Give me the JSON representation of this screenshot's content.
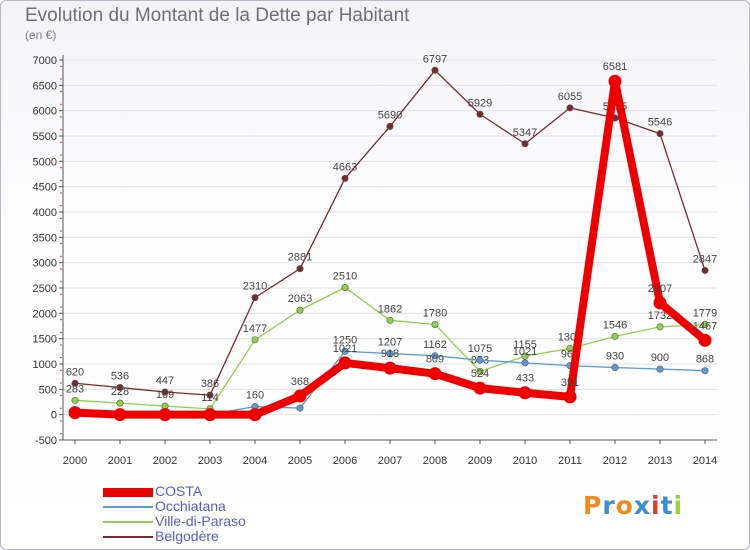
{
  "title": "Evolution du Montant de la Dette par Habitant",
  "unit_label": "(en €)",
  "logo_text": "Proxiti",
  "colors": {
    "text": "#6f6f7a",
    "grid": "#e2e2e8",
    "axis": "#555555",
    "legend_text": "#5a5ad8",
    "logo": [
      "#f08a1c",
      "#3a8fd0",
      "#f08a1c",
      "#3a8fd0",
      "#e23a2a",
      "#3a8fd0",
      "#9bcf3a"
    ]
  },
  "chart_data": {
    "type": "line",
    "title": "Evolution du Montant de la Dette par Habitant",
    "ylabel": "(en €)",
    "xlabel": "",
    "x": [
      2000,
      2001,
      2002,
      2003,
      2004,
      2005,
      2006,
      2007,
      2008,
      2009,
      2010,
      2011,
      2012,
      2013,
      2014
    ],
    "ylim": [
      -500,
      7000
    ],
    "yticks": [
      -500,
      0,
      500,
      1000,
      1500,
      2000,
      2500,
      3000,
      3500,
      4000,
      4500,
      5000,
      5500,
      6000,
      6500,
      7000
    ],
    "grid": true,
    "legend_position": "bottom-left",
    "series": [
      {
        "name": "COSTA",
        "color": "#ee0000",
        "points": [
          [
            2000,
            40
          ],
          [
            2001,
            0
          ],
          [
            2002,
            0
          ],
          [
            2003,
            0
          ],
          [
            2004,
            0
          ],
          [
            2005,
            368
          ],
          [
            2006,
            1021
          ],
          [
            2007,
            918
          ],
          [
            2008,
            809
          ],
          [
            2009,
            524
          ],
          [
            2010,
            433
          ],
          [
            2011,
            351
          ],
          [
            2012,
            6581
          ],
          [
            2013,
            2207
          ],
          [
            2014,
            1467
          ]
        ],
        "labels": [
          "",
          "",
          "",
          "",
          "",
          "368",
          "1021",
          "918",
          "809",
          "524",
          "433",
          "351",
          "6581",
          "2207",
          "1467"
        ]
      },
      {
        "name": "Occhiatana",
        "color": "#5b9bd5",
        "points": [
          [
            2000,
            0
          ],
          [
            2001,
            0
          ],
          [
            2002,
            0
          ],
          [
            2003,
            4
          ],
          [
            2004,
            160
          ],
          [
            2005,
            130
          ],
          [
            2006,
            1250
          ],
          [
            2007,
            1207
          ],
          [
            2008,
            1162
          ],
          [
            2009,
            1075
          ],
          [
            2010,
            1021
          ],
          [
            2011,
            968
          ],
          [
            2012,
            930
          ],
          [
            2013,
            900
          ],
          [
            2014,
            868
          ]
        ],
        "labels": [
          "",
          "",
          "",
          "",
          "160",
          "",
          "1250",
          "1207",
          "1162",
          "1075",
          "1021",
          "968",
          "930",
          "900",
          "868"
        ]
      },
      {
        "name": "Ville-di-Paraso",
        "color": "#8fd24a",
        "points": [
          [
            2000,
            283
          ],
          [
            2001,
            228
          ],
          [
            2002,
            169
          ],
          [
            2003,
            114
          ],
          [
            2004,
            1477
          ],
          [
            2005,
            2063
          ],
          [
            2006,
            2510
          ],
          [
            2007,
            1862
          ],
          [
            2008,
            1780
          ],
          [
            2009,
            853
          ],
          [
            2010,
            1155
          ],
          [
            2011,
            1307
          ],
          [
            2012,
            1546
          ],
          [
            2013,
            1732
          ],
          [
            2014,
            1779
          ]
        ],
        "labels": [
          "283",
          "228",
          "169",
          "114",
          "1477",
          "2063",
          "2510",
          "1862",
          "1780",
          "853",
          "1155",
          "1307",
          "1546",
          "1732",
          "1779"
        ]
      },
      {
        "name": "Belgodère",
        "color": "#7a2a2a",
        "points": [
          [
            2000,
            620
          ],
          [
            2001,
            536
          ],
          [
            2002,
            447
          ],
          [
            2003,
            386
          ],
          [
            2004,
            2310
          ],
          [
            2005,
            2881
          ],
          [
            2006,
            4663
          ],
          [
            2007,
            5690
          ],
          [
            2008,
            6797
          ],
          [
            2009,
            5929
          ],
          [
            2010,
            5347
          ],
          [
            2011,
            6055
          ],
          [
            2012,
            5855
          ],
          [
            2013,
            5546
          ],
          [
            2014,
            2847
          ]
        ],
        "labels": [
          "620",
          "536",
          "447",
          "386",
          "2310",
          "2881",
          "4663",
          "5690",
          "6797",
          "5929",
          "5347",
          "6055",
          "5855",
          "5546",
          "2847"
        ]
      }
    ]
  }
}
